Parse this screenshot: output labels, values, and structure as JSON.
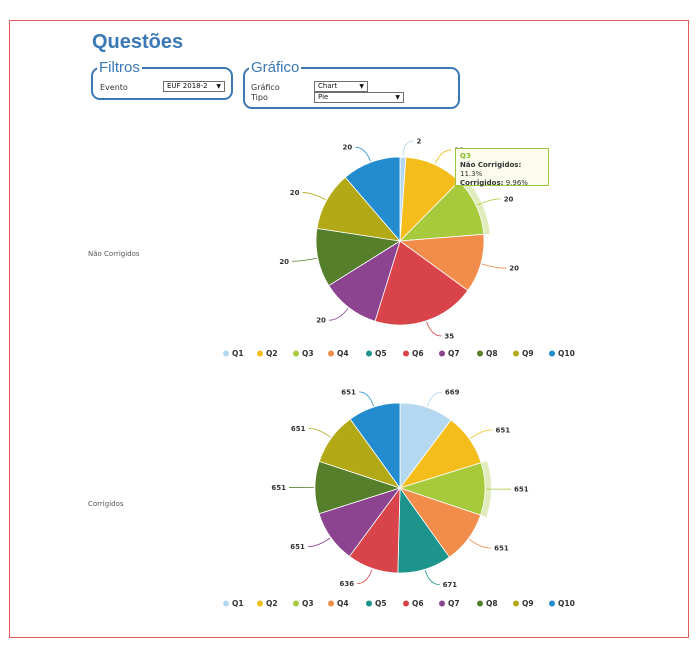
{
  "page": {
    "title": "Questões"
  },
  "filtros": {
    "legend": "Filtros",
    "evento_label": "Evento",
    "evento_value": "EUF 2018-2"
  },
  "grafico": {
    "legend": "Gráfico",
    "grafico_label": "Gráfico",
    "grafico_value": "Chart",
    "tipo_label": "Tipo",
    "tipo_value": "Pie"
  },
  "tooltip": {
    "title": "Q3",
    "row1_label": "Não Corrigidos:",
    "row1_value": "11.3%",
    "row2_label": "Corrigidos:",
    "row2_value": "9.96%"
  },
  "colors": [
    "#b5d8f1",
    "#f4bd1c",
    "#a7c93c",
    "#f28c4a",
    "#1c948b",
    "#d9434a",
    "#8c4490",
    "#567f2c",
    "#b3a916",
    "#238ccf"
  ],
  "chart_data": [
    {
      "type": "pie",
      "title": "Não Corrigidos",
      "categories": [
        "Q1",
        "Q2",
        "Q3",
        "Q4",
        "Q5",
        "Q6",
        "Q7",
        "Q8",
        "Q9",
        "Q10"
      ],
      "values": [
        2,
        20,
        20,
        20,
        0,
        35,
        20,
        20,
        20,
        20
      ],
      "data_labels": [
        "2",
        "20",
        "20",
        "20",
        "",
        "35",
        "20",
        "20",
        "20",
        "20"
      ],
      "highlighted": "Q3",
      "legend_position": "bottom"
    },
    {
      "type": "pie",
      "title": "Corrigidos",
      "categories": [
        "Q1",
        "Q2",
        "Q3",
        "Q4",
        "Q5",
        "Q6",
        "Q7",
        "Q8",
        "Q9",
        "Q10"
      ],
      "values": [
        669,
        651,
        651,
        651,
        671,
        636,
        651,
        651,
        651,
        651
      ],
      "data_labels": [
        "669",
        "651",
        "651",
        "651",
        "671",
        "636",
        "651",
        "651",
        "651",
        "651"
      ],
      "highlighted": "Q3",
      "legend_position": "bottom"
    }
  ]
}
